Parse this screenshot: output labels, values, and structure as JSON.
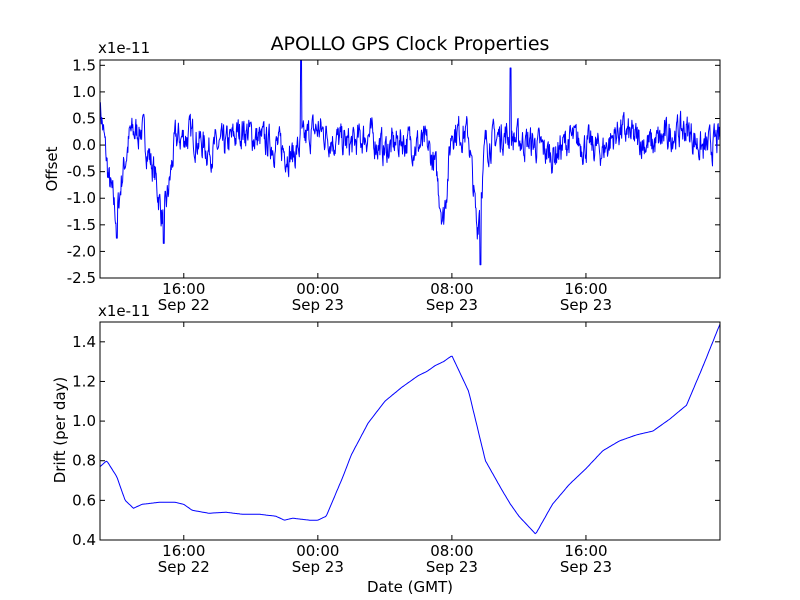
{
  "chart_data": [
    {
      "type": "line",
      "title": "APOLLO GPS Clock Properties",
      "ylabel": "Offset",
      "xlabel": "",
      "multiplier": "x1e-11",
      "x_range": [
        "Sep 22 11:00",
        "Sep 24 00:00"
      ],
      "ylim": [
        -2.5,
        1.6
      ],
      "y_ticks": [
        "1.5",
        "1.0",
        "0.5",
        "0.0",
        "-0.5",
        "-1.0",
        "-1.5",
        "-2.0",
        "-2.5"
      ],
      "y_tick_values": [
        1.5,
        1.0,
        0.5,
        0.0,
        -0.5,
        -1.0,
        -1.5,
        -2.0,
        -2.5
      ],
      "x_tick_hours": [
        16,
        24,
        32,
        40
      ],
      "x_tick_labels": [
        [
          "16:00",
          "Sep 22"
        ],
        [
          "00:00",
          "Sep 23"
        ],
        [
          "08:00",
          "Sep 23"
        ],
        [
          "16:00",
          "Sep 23"
        ]
      ],
      "series_color": "#0000ff",
      "x_hours": [
        11.0,
        11.5,
        12.0,
        12.3,
        12.8,
        13.5,
        14.3,
        14.8,
        15.5,
        16.5,
        17.5,
        18.5,
        19.5,
        20.5,
        21.5,
        22.5,
        23.5,
        24.0,
        25.0,
        26.0,
        27.0,
        28.0,
        29.0,
        30.0,
        30.5,
        31.0,
        31.5,
        32.0,
        33.0,
        33.5,
        34.0,
        35.0,
        36.0,
        37.0,
        38.0,
        39.0,
        40.0,
        41.0,
        42.0,
        43.0,
        44.0,
        45.0,
        46.0,
        47.0,
        48.0
      ],
      "values": [
        0.8,
        -0.6,
        -1.4,
        -0.6,
        0.2,
        0.3,
        -0.6,
        -1.5,
        0.1,
        0.2,
        -0.1,
        0.0,
        0.3,
        0.1,
        0.0,
        -0.2,
        0.2,
        0.3,
        0.1,
        0.0,
        0.2,
        -0.1,
        0.1,
        0.0,
        0.0,
        -0.4,
        -1.4,
        0.3,
        0.2,
        -1.6,
        0.0,
        0.2,
        0.1,
        0.0,
        -0.2,
        0.1,
        0.0,
        -0.1,
        0.3,
        0.1,
        0.0,
        0.2,
        0.3,
        -0.1,
        0.1
      ],
      "noise_amplitude": 0.25,
      "extremes": [
        {
          "x": 12.0,
          "y": -1.75
        },
        {
          "x": 14.8,
          "y": -1.85
        },
        {
          "x": 23.0,
          "y": 1.6
        },
        {
          "x": 33.7,
          "y": -2.25
        },
        {
          "x": 35.5,
          "y": 1.45
        }
      ]
    },
    {
      "type": "line",
      "title": "",
      "ylabel": "Drift (per day)",
      "xlabel": "Date (GMT)",
      "multiplier": "x1e-11",
      "x_range": [
        "Sep 22 11:00",
        "Sep 24 00:00"
      ],
      "ylim": [
        0.4,
        1.5
      ],
      "y_ticks": [
        "1.4",
        "1.2",
        "1.0",
        "0.8",
        "0.6",
        "0.4"
      ],
      "y_tick_values": [
        1.4,
        1.2,
        1.0,
        0.8,
        0.6,
        0.4
      ],
      "x_tick_hours": [
        16,
        24,
        32,
        40
      ],
      "x_tick_labels": [
        [
          "16:00",
          "Sep 22"
        ],
        [
          "00:00",
          "Sep 23"
        ],
        [
          "08:00",
          "Sep 23"
        ],
        [
          "16:00",
          "Sep 23"
        ]
      ],
      "series_color": "#0000ff",
      "x_hours": [
        11.0,
        11.4,
        12.0,
        12.5,
        13.0,
        13.5,
        14.5,
        15.5,
        16.0,
        16.5,
        17.5,
        18.5,
        19.5,
        20.5,
        21.5,
        22.0,
        22.5,
        23.0,
        23.5,
        24.0,
        24.5,
        25.0,
        25.5,
        26.0,
        27.0,
        28.0,
        29.0,
        30.0,
        30.5,
        31.0,
        31.5,
        32.0,
        33.0,
        34.0,
        35.0,
        35.5,
        36.0,
        37.0,
        38.0,
        39.0,
        40.0,
        41.0,
        42.0,
        43.0,
        44.0,
        45.0,
        46.0,
        47.0,
        48.0
      ],
      "values": [
        0.77,
        0.8,
        0.72,
        0.6,
        0.56,
        0.58,
        0.59,
        0.59,
        0.58,
        0.55,
        0.535,
        0.54,
        0.53,
        0.53,
        0.52,
        0.5,
        0.51,
        0.505,
        0.5,
        0.5,
        0.52,
        0.62,
        0.72,
        0.83,
        0.99,
        1.1,
        1.17,
        1.23,
        1.25,
        1.28,
        1.3,
        1.33,
        1.15,
        0.8,
        0.65,
        0.58,
        0.52,
        0.43,
        0.58,
        0.68,
        0.76,
        0.85,
        0.9,
        0.93,
        0.95,
        1.01,
        1.08,
        1.28,
        1.49
      ]
    }
  ]
}
